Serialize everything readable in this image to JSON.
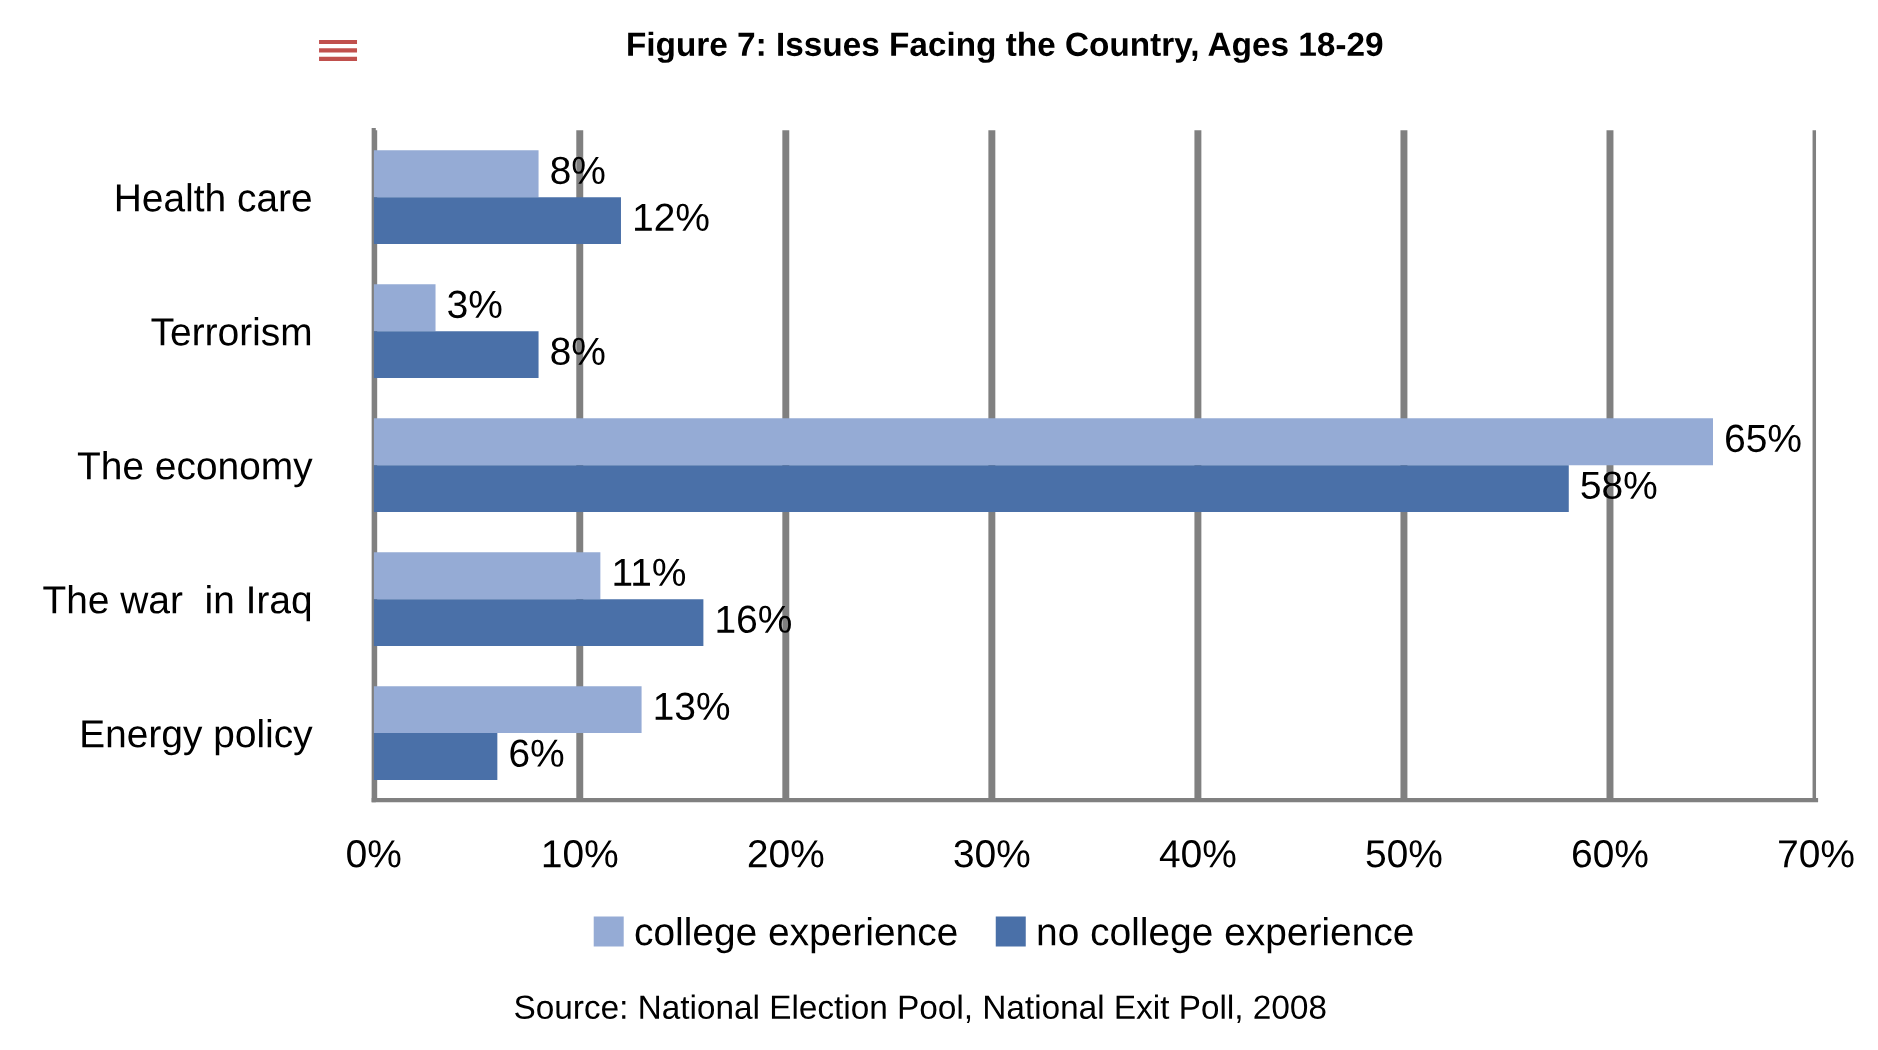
{
  "chart_data": {
    "type": "bar",
    "orientation": "horizontal",
    "title": "Figure 7: Issues Facing the Country, Ages 18-29",
    "categories": [
      "Health care",
      "Terrorism",
      "The economy",
      "The war  in Iraq",
      "Energy policy"
    ],
    "series": [
      {
        "name": "college experience",
        "color": "#95abd5",
        "values": [
          8,
          3,
          65,
          11,
          13
        ],
        "value_labels": [
          "8%",
          "3%",
          "65%",
          "11%",
          "13%"
        ]
      },
      {
        "name": "no college experience",
        "color": "#4a70a8",
        "values": [
          12,
          8,
          58,
          16,
          6
        ],
        "value_labels": [
          "12%",
          "8%",
          "58%",
          "16%",
          "6%"
        ]
      }
    ],
    "xlim": [
      0,
      70
    ],
    "xticks": [
      {
        "value": 0,
        "label": "0%"
      },
      {
        "value": 10,
        "label": "10%"
      },
      {
        "value": 20,
        "label": "20%"
      },
      {
        "value": 30,
        "label": "30%"
      },
      {
        "value": 40,
        "label": "40%"
      },
      {
        "value": 50,
        "label": "50%"
      },
      {
        "value": 60,
        "label": "60%"
      },
      {
        "value": 70,
        "label": "70%"
      }
    ],
    "grid": "x",
    "legend": "bottom",
    "annotations": [
      "Source: National Election Pool, National Exit Poll, 2008"
    ]
  }
}
